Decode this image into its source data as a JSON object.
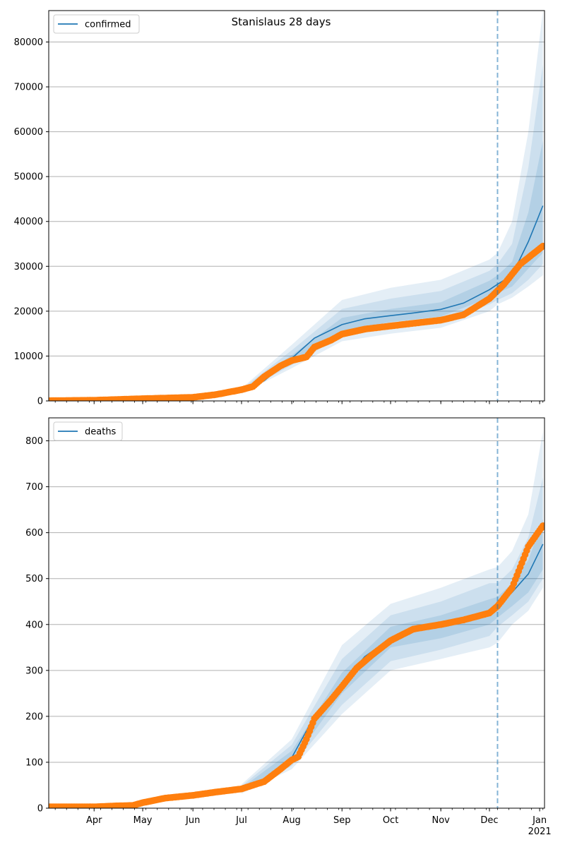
{
  "title": "Stanislaus 28 days",
  "colors": {
    "model": "#1f77b4",
    "observed": "#ff7f0e",
    "band": "#1f77b4",
    "grid": "#b0b0b0",
    "axis": "#000000"
  },
  "x_axis": {
    "tick_labels": [
      "Apr",
      "May",
      "Jun",
      "Jul",
      "Aug",
      "Sep",
      "Oct",
      "Nov",
      "Dec",
      "Jan"
    ],
    "year_label": "2021",
    "range": [
      "2020-03-04",
      "2021-01-04"
    ]
  },
  "forecast_start": "2020-12-06",
  "chart_data": [
    {
      "type": "line",
      "legend": "confirmed",
      "legend_position": "upper-left",
      "grid": "y",
      "ylim": [
        0,
        87000
      ],
      "yticks": [
        0,
        10000,
        20000,
        30000,
        40000,
        50000,
        60000,
        70000,
        80000
      ],
      "series": [
        {
          "name": "confirmed",
          "role": "model median",
          "x": [
            "2020-07-01",
            "2020-07-15",
            "2020-08-01",
            "2020-08-15",
            "2020-09-01",
            "2020-09-15",
            "2020-10-01",
            "2020-10-15",
            "2020-11-01",
            "2020-11-15",
            "2020-12-01",
            "2020-12-06",
            "2020-12-15",
            "2020-12-25",
            "2021-01-03"
          ],
          "y": [
            2200,
            4500,
            9500,
            14000,
            17000,
            18300,
            19000,
            19600,
            20400,
            21800,
            24800,
            26000,
            28000,
            35500,
            43500
          ]
        },
        {
          "name": "observed",
          "role": "observed points",
          "x": [
            "2020-03-04",
            "2020-04-01",
            "2020-05-01",
            "2020-06-01",
            "2020-06-15",
            "2020-07-01",
            "2020-07-08",
            "2020-07-15",
            "2020-07-25",
            "2020-08-01",
            "2020-08-10",
            "2020-08-15",
            "2020-08-25",
            "2020-09-01",
            "2020-09-15",
            "2020-10-01",
            "2020-10-15",
            "2020-11-01",
            "2020-11-15",
            "2020-12-01",
            "2020-12-10",
            "2020-12-20",
            "2021-01-03"
          ],
          "y": [
            50,
            150,
            500,
            800,
            1400,
            2500,
            3200,
            5400,
            7800,
            9000,
            9800,
            12000,
            13500,
            14900,
            16000,
            16700,
            17300,
            18000,
            19200,
            22800,
            26000,
            30500,
            34500
          ]
        }
      ],
      "bands": [
        {
          "level": "inner",
          "x": [
            "2020-07-01",
            "2020-08-01",
            "2020-09-01",
            "2020-10-01",
            "2020-11-01",
            "2020-12-01",
            "2020-12-06",
            "2020-12-15",
            "2020-12-25",
            "2021-01-03"
          ],
          "low": [
            2000,
            8800,
            15600,
            17600,
            18800,
            23000,
            24000,
            25500,
            29500,
            33000
          ],
          "high": [
            2400,
            10200,
            18500,
            20500,
            22000,
            26800,
            28000,
            31000,
            42000,
            58000
          ]
        },
        {
          "level": "middle",
          "x": [
            "2020-07-01",
            "2020-08-01",
            "2020-09-01",
            "2020-10-01",
            "2020-11-01",
            "2020-12-01",
            "2020-12-06",
            "2020-12-15",
            "2020-12-25",
            "2021-01-03"
          ],
          "low": [
            1800,
            8000,
            14500,
            16300,
            17500,
            21500,
            22500,
            24000,
            27000,
            30500
          ],
          "high": [
            2600,
            11300,
            20500,
            22800,
            24500,
            29000,
            30500,
            35000,
            52000,
            75000
          ]
        },
        {
          "level": "outer",
          "x": [
            "2020-07-01",
            "2020-08-01",
            "2020-09-01",
            "2020-10-01",
            "2020-11-01",
            "2020-12-01",
            "2020-12-06",
            "2020-12-15",
            "2020-12-25",
            "2021-01-03"
          ],
          "low": [
            1600,
            7300,
            13300,
            15000,
            16300,
            20000,
            21500,
            23000,
            25500,
            28000
          ],
          "high": [
            2800,
            12500,
            22500,
            25200,
            27000,
            31500,
            33000,
            40000,
            60000,
            87000
          ]
        }
      ]
    },
    {
      "type": "line",
      "legend": "deaths",
      "legend_position": "upper-left",
      "grid": "y",
      "ylim": [
        0,
        850
      ],
      "yticks": [
        0,
        100,
        200,
        300,
        400,
        500,
        600,
        700,
        800
      ],
      "series": [
        {
          "name": "deaths",
          "role": "model median",
          "x": [
            "2020-07-01",
            "2020-07-15",
            "2020-08-01",
            "2020-08-15",
            "2020-09-01",
            "2020-09-15",
            "2020-10-01",
            "2020-10-15",
            "2020-11-01",
            "2020-11-15",
            "2020-12-01",
            "2020-12-06",
            "2020-12-15",
            "2020-12-25",
            "2021-01-03"
          ],
          "y": [
            40,
            60,
            110,
            200,
            270,
            330,
            370,
            385,
            395,
            405,
            425,
            440,
            470,
            510,
            575
          ]
        },
        {
          "name": "observed",
          "role": "observed points",
          "x": [
            "2020-03-04",
            "2020-04-01",
            "2020-04-15",
            "2020-04-25",
            "2020-05-01",
            "2020-05-15",
            "2020-06-01",
            "2020-06-15",
            "2020-07-01",
            "2020-07-15",
            "2020-07-25",
            "2020-08-01",
            "2020-08-05",
            "2020-08-10",
            "2020-08-15",
            "2020-08-25",
            "2020-09-01",
            "2020-09-10",
            "2020-09-20",
            "2020-10-01",
            "2020-10-15",
            "2020-11-01",
            "2020-11-15",
            "2020-12-01",
            "2020-12-06",
            "2020-12-15",
            "2020-12-25",
            "2021-01-03"
          ],
          "y": [
            3,
            3,
            5,
            6,
            12,
            22,
            28,
            35,
            42,
            58,
            85,
            105,
            112,
            150,
            195,
            235,
            265,
            305,
            335,
            365,
            390,
            400,
            410,
            425,
            440,
            480,
            570,
            615
          ]
        }
      ],
      "bands": [
        {
          "level": "inner",
          "x": [
            "2020-07-01",
            "2020-08-01",
            "2020-09-01",
            "2020-10-01",
            "2020-11-01",
            "2020-12-01",
            "2020-12-06",
            "2020-12-15",
            "2020-12-25",
            "2021-01-03"
          ],
          "low": [
            38,
            100,
            250,
            350,
            370,
            400,
            415,
            440,
            470,
            520
          ],
          "high": [
            44,
            125,
            295,
            395,
            420,
            455,
            460,
            490,
            540,
            630
          ]
        },
        {
          "level": "middle",
          "x": [
            "2020-07-01",
            "2020-08-01",
            "2020-09-01",
            "2020-10-01",
            "2020-11-01",
            "2020-12-01",
            "2020-12-06",
            "2020-12-15",
            "2020-12-25",
            "2021-01-03"
          ],
          "low": [
            35,
            92,
            225,
            320,
            345,
            375,
            395,
            420,
            450,
            500
          ],
          "high": [
            48,
            138,
            325,
            420,
            450,
            490,
            490,
            520,
            590,
            720
          ]
        },
        {
          "level": "outer",
          "x": [
            "2020-07-01",
            "2020-08-01",
            "2020-09-01",
            "2020-10-01",
            "2020-11-01",
            "2020-12-01",
            "2020-12-06",
            "2020-12-15",
            "2020-12-25",
            "2021-01-03"
          ],
          "low": [
            32,
            85,
            205,
            300,
            325,
            350,
            360,
            400,
            430,
            480
          ],
          "high": [
            52,
            150,
            355,
            445,
            480,
            520,
            525,
            560,
            640,
            820
          ]
        }
      ]
    }
  ]
}
